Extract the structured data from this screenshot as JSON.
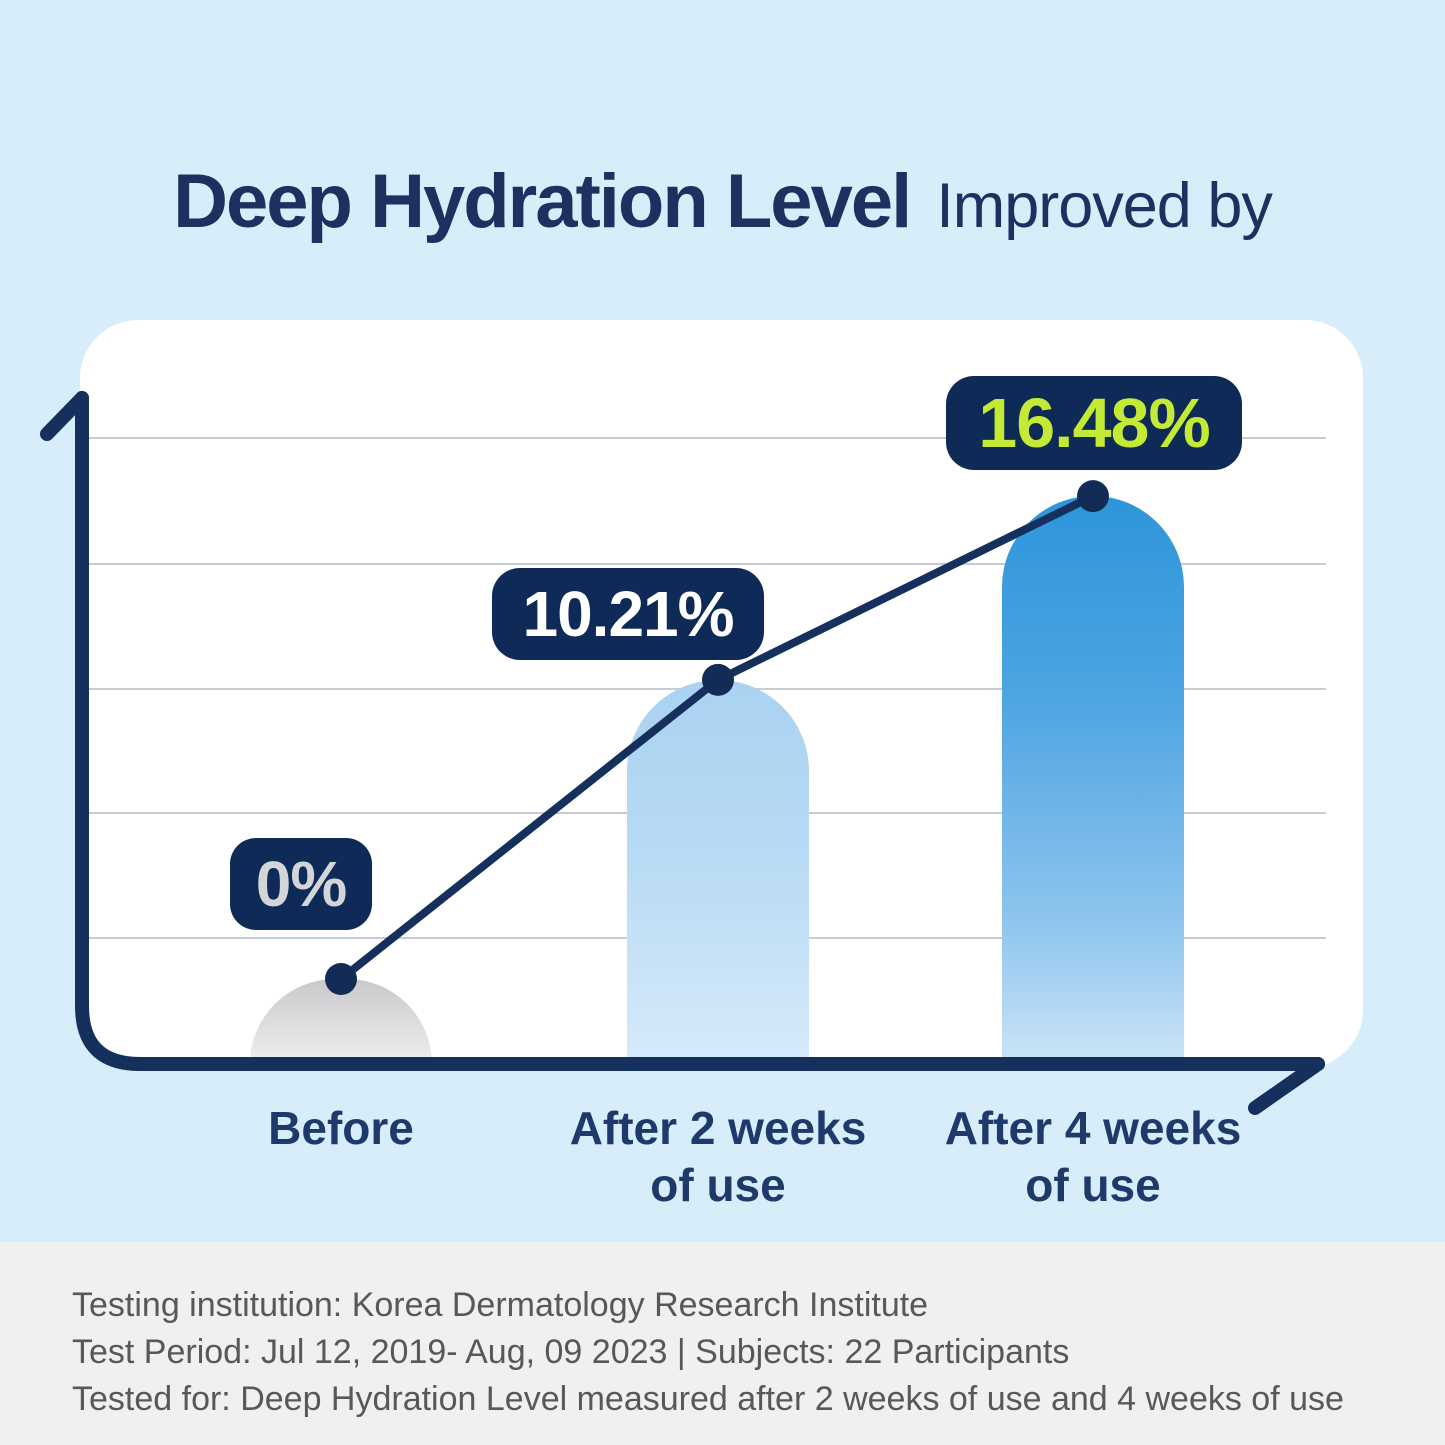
{
  "title": {
    "main": "Deep Hydration Level",
    "suffix": "Improved by"
  },
  "chart_data": {
    "type": "bar",
    "title": "Deep Hydration Level Improved by",
    "categories": [
      "Before",
      "After 2 weeks of use",
      "After 4 weeks of use"
    ],
    "categories_lines": [
      [
        "Before",
        ""
      ],
      [
        "After 2 weeks",
        "of use"
      ],
      [
        "After 4 weeks",
        "of use"
      ]
    ],
    "values": [
      0,
      10.21,
      16.48
    ],
    "point_labels": [
      "0%",
      "10.21%",
      "16.48%"
    ],
    "xlabel": "",
    "ylabel": "",
    "ylim": [
      0,
      20
    ],
    "grid": "horizontal",
    "gridline_count": 5,
    "legend": "none",
    "overlay": "trend line with dots connecting bar tops",
    "bar_colors": [
      "#c9c9cb",
      "#a9d3f1",
      "#2d95da"
    ],
    "line_color": "#15305c",
    "point_label_colors": [
      "#d3d5d9",
      "#ffffff",
      "#c4ea35"
    ]
  },
  "footer": {
    "lines": [
      "Testing institution: Korea Dermatology Research Institute",
      "Test Period: Jul 12, 2019- Aug, 09 2023  |  Subjects: 22 Participants",
      "Tested for: Deep Hydration Level measured after 2 weeks of use and 4 weeks of use"
    ]
  },
  "colors": {
    "background": "#d7edfa",
    "card": "#ffffff",
    "gridline": "#c6ccd6",
    "navy": "#15305c",
    "badge_navy": "#0e2a56",
    "lime_accent": "#c4ea35",
    "footer_background": "#f0f0ee",
    "footer_text": "#58585a",
    "title_text": "#1d3060"
  }
}
